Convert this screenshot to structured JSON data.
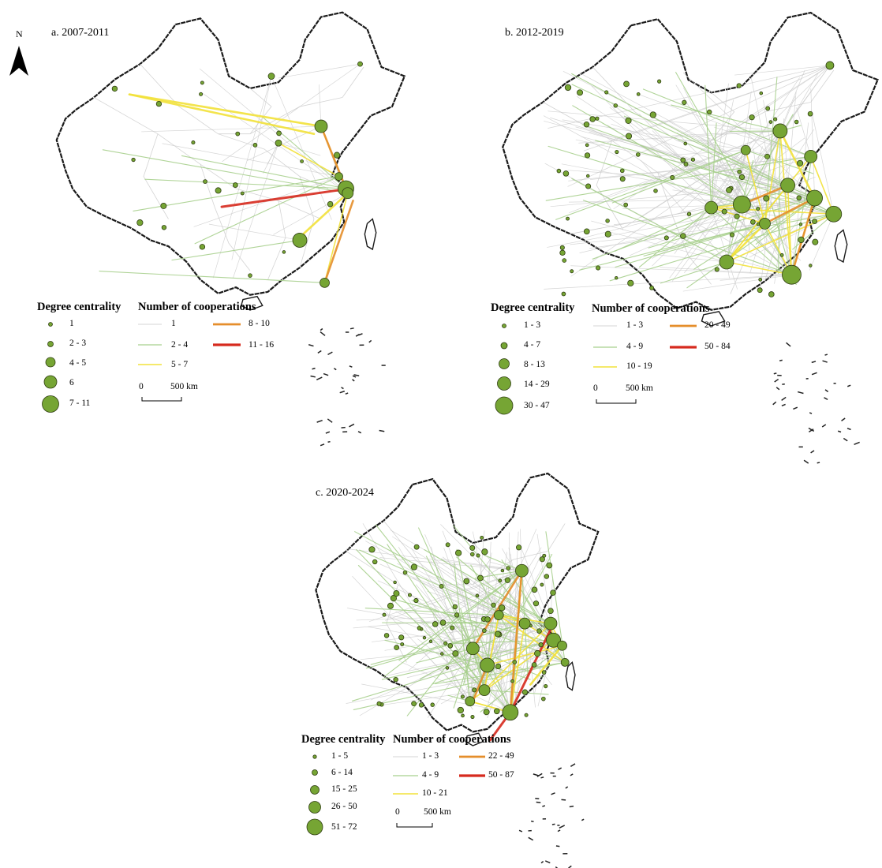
{
  "north_arrow": {
    "letter": "N"
  },
  "panels": [
    {
      "id": "a",
      "title": "a. 2007-2011",
      "degree_heading": "Degree centrality",
      "coop_heading": "Number of cooperations",
      "degree_classes": [
        "1",
        "2 - 3",
        "4 - 5",
        "6",
        "7 - 11"
      ],
      "coop_classes": [
        "1",
        "2 - 4",
        "5 - 7",
        "8 - 10",
        "11 - 16"
      ],
      "scale": {
        "zero": "0",
        "distance": "500 km"
      }
    },
    {
      "id": "b",
      "title": "b. 2012-2019",
      "degree_heading": "Degree centrality",
      "coop_heading": "Number of cooperations",
      "degree_classes": [
        "1 - 3",
        "4 - 7",
        "8 - 13",
        "14 - 29",
        "30 - 47"
      ],
      "coop_classes": [
        "1 - 3",
        "4 - 9",
        "10 - 19",
        "20 - 49",
        "50 - 84"
      ],
      "scale": {
        "zero": "0",
        "distance": "500 km"
      }
    },
    {
      "id": "c",
      "title": "c. 2020-2024",
      "degree_heading": "Degree centrality",
      "coop_heading": "Number of cooperations",
      "degree_classes": [
        "1 - 5",
        "6 - 14",
        "15 - 25",
        "26 - 50",
        "51 - 72"
      ],
      "coop_classes": [
        "1 - 3",
        "4 - 9",
        "10 - 21",
        "22 - 49",
        "50 - 87"
      ],
      "scale": {
        "zero": "0",
        "distance": "500 km"
      }
    }
  ],
  "colors": {
    "node_fill": "#76a534",
    "node_stroke": "#2f3d12",
    "coop_class_colors": [
      "#c8c8c8",
      "#a8d08d",
      "#f2e23a",
      "#e58e2b",
      "#d62a1e"
    ],
    "outline": "#1a1a1a",
    "province_lines": "#d4d4d4"
  }
}
